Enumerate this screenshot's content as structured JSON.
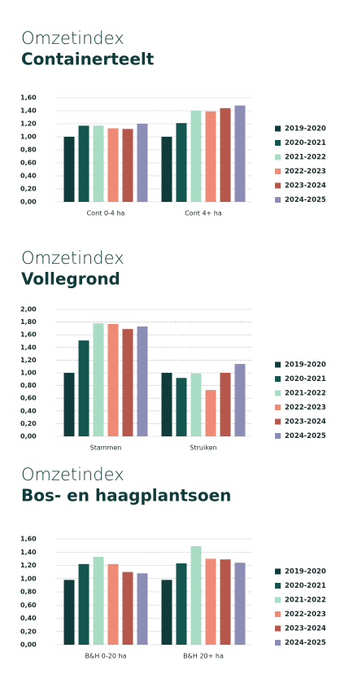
{
  "chart_data": [
    {
      "type": "bar",
      "title": "Omzetindex",
      "subtitle": "Containerteelt",
      "categories": [
        "Cont 0-4 ha",
        "Cont 4+ ha"
      ],
      "series": [
        {
          "name": "2019-2020",
          "color": "#0f3b3a",
          "values": [
            1.0,
            1.0
          ]
        },
        {
          "name": "2020-2021",
          "color": "#14564f",
          "values": [
            1.17,
            1.21
          ]
        },
        {
          "name": "2021-2022",
          "color": "#a8dcc5",
          "values": [
            1.17,
            1.4
          ]
        },
        {
          "name": "2022-2023",
          "color": "#ee8a76",
          "values": [
            1.13,
            1.39
          ]
        },
        {
          "name": "2023-2024",
          "color": "#b5574a",
          "values": [
            1.12,
            1.44
          ]
        },
        {
          "name": "2024-2025",
          "color": "#8c8db5",
          "values": [
            1.2,
            1.48
          ]
        }
      ],
      "ylim": [
        0,
        1.6
      ],
      "yticks": [
        {
          "value": 0,
          "label": "0,00"
        },
        {
          "value": 0.2,
          "label": "0,20"
        },
        {
          "value": 0.4,
          "label": "0,40"
        },
        {
          "value": 0.6,
          "label": "0,60"
        },
        {
          "value": 0.8,
          "label": "0,80"
        },
        {
          "value": 1.0,
          "label": "1,00"
        },
        {
          "value": 1.2,
          "label": "1,20"
        },
        {
          "value": 1.4,
          "label": "1,40"
        },
        {
          "value": 1.6,
          "label": "1,60"
        }
      ],
      "grid": true
    },
    {
      "type": "bar",
      "title": "Omzetindex",
      "subtitle": "Vollegrond",
      "categories": [
        "Stammen",
        "Struiken"
      ],
      "series": [
        {
          "name": "2019-2020",
          "color": "#0f3b3a",
          "values": [
            1.0,
            1.0
          ]
        },
        {
          "name": "2020-2021",
          "color": "#14564f",
          "values": [
            1.51,
            0.92
          ]
        },
        {
          "name": "2021-2022",
          "color": "#a8dcc5",
          "values": [
            1.78,
            0.99
          ]
        },
        {
          "name": "2022-2023",
          "color": "#ee8a76",
          "values": [
            1.77,
            0.73
          ]
        },
        {
          "name": "2023-2024",
          "color": "#b5574a",
          "values": [
            1.69,
            1.0
          ]
        },
        {
          "name": "2024-2025",
          "color": "#8c8db5",
          "values": [
            1.73,
            1.14
          ]
        }
      ],
      "ylim": [
        0,
        2.0
      ],
      "yticks": [
        {
          "value": 0,
          "label": "0,00"
        },
        {
          "value": 0.2,
          "label": "0,20"
        },
        {
          "value": 0.4,
          "label": "0,40"
        },
        {
          "value": 0.6,
          "label": "0,60"
        },
        {
          "value": 0.8,
          "label": "0,80"
        },
        {
          "value": 1.0,
          "label": "1,00"
        },
        {
          "value": 1.2,
          "label": "1,20"
        },
        {
          "value": 1.4,
          "label": "1,40"
        },
        {
          "value": 1.6,
          "label": "1,60"
        },
        {
          "value": 1.8,
          "label": "1,80"
        },
        {
          "value": 2.0,
          "label": "2,00"
        }
      ],
      "grid": true
    },
    {
      "type": "bar",
      "title": "Omzetindex",
      "subtitle": "Bos- en haagplantsoen",
      "categories": [
        "B&H 0-20 ha",
        "B&H 20+ ha"
      ],
      "series": [
        {
          "name": "2019-2020",
          "color": "#0f3b3a",
          "values": [
            0.98,
            0.98
          ]
        },
        {
          "name": "2020-2021",
          "color": "#14564f",
          "values": [
            1.22,
            1.23
          ]
        },
        {
          "name": "2021-2022",
          "color": "#a8dcc5",
          "values": [
            1.33,
            1.49
          ]
        },
        {
          "name": "2022-2023",
          "color": "#ee8a76",
          "values": [
            1.22,
            1.3
          ]
        },
        {
          "name": "2023-2024",
          "color": "#b5574a",
          "values": [
            1.1,
            1.29
          ]
        },
        {
          "name": "2024-2025",
          "color": "#8c8db5",
          "values": [
            1.08,
            1.24
          ]
        }
      ],
      "ylim": [
        0,
        1.6
      ],
      "yticks": [
        {
          "value": 0,
          "label": "0,00"
        },
        {
          "value": 0.2,
          "label": "0,20"
        },
        {
          "value": 0.4,
          "label": "0,40"
        },
        {
          "value": 0.6,
          "label": "0,60"
        },
        {
          "value": 0.8,
          "label": "0,80"
        },
        {
          "value": 1.0,
          "label": "1,00"
        },
        {
          "value": 1.2,
          "label": "1,20"
        },
        {
          "value": 1.4,
          "label": "1,40"
        },
        {
          "value": 1.6,
          "label": "1,60"
        }
      ],
      "grid": true
    }
  ]
}
